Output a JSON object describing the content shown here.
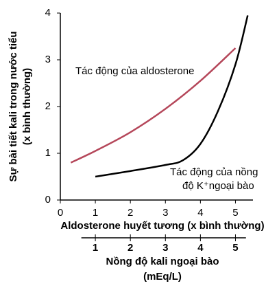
{
  "chart_data": {
    "type": "line",
    "ylabel": [
      "Sự bài tiết kali trong nước tiểu",
      "(x bình thường)"
    ],
    "xlabel": "Aldosterone huyết tương (x bình thường)",
    "x2label": [
      "Nồng độ kali ngoại bào",
      "(mEq/L)"
    ],
    "xlim": [
      0,
      5.5
    ],
    "xticks": [
      0,
      1,
      2,
      3,
      4,
      5
    ],
    "x2lim": [
      0.6,
      5.3
    ],
    "x2ticks": [
      1,
      2,
      3,
      4,
      5
    ],
    "ylim": [
      0,
      4
    ],
    "yticks": [
      0,
      1,
      2,
      3,
      4
    ],
    "series": [
      {
        "color": "#b5475a",
        "x": [
          0.3,
          1,
          2,
          3,
          4,
          5
        ],
        "values": [
          0.8,
          1.05,
          1.45,
          1.95,
          2.55,
          3.25
        ]
      },
      {
        "color": "#000000",
        "x": [
          1,
          2,
          3,
          3.5,
          4,
          4.5,
          5,
          5.35
        ],
        "values": [
          0.5,
          0.62,
          0.75,
          0.85,
          1.2,
          1.9,
          2.9,
          3.95
        ]
      }
    ],
    "annotations": [
      [
        "Tác động của aldosterone"
      ],
      [
        "Tác động của nồng",
        "độ K⁺ngoại bào"
      ]
    ]
  }
}
